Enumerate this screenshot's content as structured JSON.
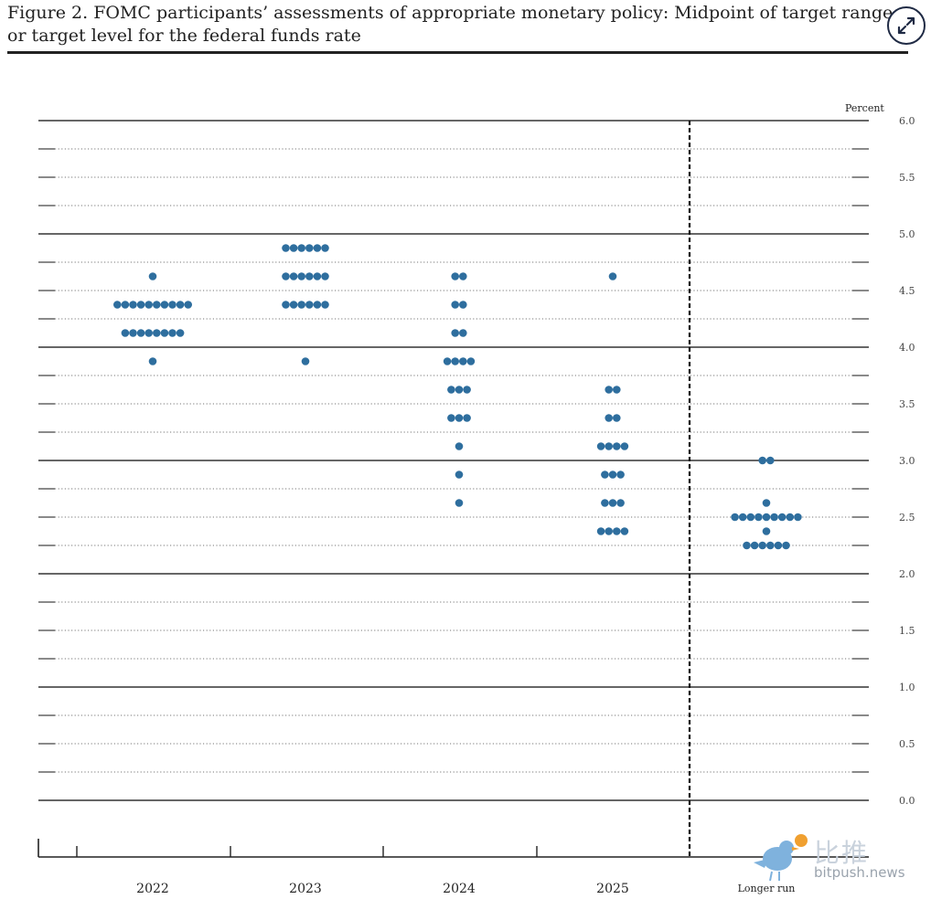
{
  "page": {
    "title_line1": "Figure 2.  FOMC participants’ assessments of appropriate monetary policy:  Midpoint of target range",
    "title_line2": "or target level for the federal funds rate",
    "expand_icon": "expand-diagonal-icon"
  },
  "watermark": {
    "logo_icon": "bird-logo-icon",
    "text_cn": "比推",
    "text_en": "bitpush.news"
  },
  "chart_data": {
    "type": "scatter",
    "title": "",
    "xlabel": "",
    "ylabel": "Percent",
    "ylim": [
      0,
      6
    ],
    "y_ticks": [
      "0.0",
      "0.5",
      "1.0",
      "1.5",
      "2.0",
      "2.5",
      "3.0",
      "3.5",
      "4.0",
      "4.5",
      "5.0",
      "5.5",
      "6.0"
    ],
    "categories": [
      "2022",
      "2023",
      "2024",
      "2025",
      "Longer run"
    ],
    "dot_color": "#2e6e9e",
    "grid": "dotted every 0.25, solid every 1.0",
    "separator": "dashed vertical line before Longer run",
    "dots": {
      "2022": [
        {
          "y": 4.625,
          "count": 1
        },
        {
          "y": 4.375,
          "count": 10
        },
        {
          "y": 4.125,
          "count": 8
        },
        {
          "y": 3.875,
          "count": 1
        }
      ],
      "2023": [
        {
          "y": 4.875,
          "count": 6
        },
        {
          "y": 4.625,
          "count": 6
        },
        {
          "y": 4.375,
          "count": 6
        },
        {
          "y": 3.875,
          "count": 1
        }
      ],
      "2024": [
        {
          "y": 4.625,
          "count": 2
        },
        {
          "y": 4.375,
          "count": 2
        },
        {
          "y": 4.125,
          "count": 2
        },
        {
          "y": 3.875,
          "count": 4
        },
        {
          "y": 3.625,
          "count": 3
        },
        {
          "y": 3.375,
          "count": 3
        },
        {
          "y": 3.125,
          "count": 1
        },
        {
          "y": 2.875,
          "count": 1
        },
        {
          "y": 2.625,
          "count": 1
        }
      ],
      "2025": [
        {
          "y": 4.625,
          "count": 1
        },
        {
          "y": 3.625,
          "count": 2
        },
        {
          "y": 3.375,
          "count": 2
        },
        {
          "y": 3.125,
          "count": 4
        },
        {
          "y": 2.875,
          "count": 3
        },
        {
          "y": 2.625,
          "count": 3
        },
        {
          "y": 2.375,
          "count": 4
        }
      ],
      "Longer run": [
        {
          "y": 3.0,
          "count": 2
        },
        {
          "y": 2.625,
          "count": 1
        },
        {
          "y": 2.5,
          "count": 9
        },
        {
          "y": 2.375,
          "count": 1
        },
        {
          "y": 2.25,
          "count": 6
        }
      ]
    }
  }
}
